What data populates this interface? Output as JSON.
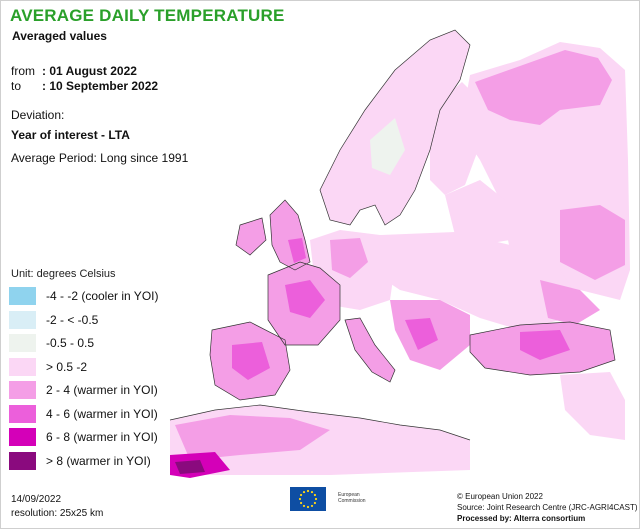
{
  "header": {
    "title": "AVERAGE DAILY TEMPERATURE",
    "subtitle": "Averaged values"
  },
  "period": {
    "from_label": "from",
    "from_value": ": 01 August 2022",
    "to_label": "to",
    "to_value": ": 10 September 2022"
  },
  "deviation": {
    "label": "Deviation:",
    "type": "Year of interest - LTA",
    "average_period": "Average Period: Long since 1991"
  },
  "legend": {
    "unit": "Unit: degrees Celsius",
    "items": [
      {
        "label": "-4 - -2 (cooler in YOI)",
        "color": "#8fd3ee"
      },
      {
        "label": "-2 - < -0.5",
        "color": "#d9eef6"
      },
      {
        "label": "-0.5 - 0.5",
        "color": "#eef3ee"
      },
      {
        "label": "> 0.5 -2",
        "color": "#fbd7f5"
      },
      {
        "label": "2 - 4 (warmer in YOI)",
        "color": "#f49ee6"
      },
      {
        "label": "4 - 6 (warmer in YOI)",
        "color": "#ec5fdb"
      },
      {
        "label": "6 - 8 (warmer in YOI)",
        "color": "#d400b8"
      },
      {
        "label": "> 8 (warmer in YOI)",
        "color": "#8a0a7e"
      }
    ]
  },
  "footer": {
    "date": "14/09/2022",
    "resolution": "resolution: 25x25 km",
    "copyright": "© European Union 2022",
    "source": "Source: Joint Research Centre (JRC-AGRI4CAST)",
    "processed": "Processed by: Alterra consortium",
    "eu_logo_line1": "European",
    "eu_logo_line2": "Commission"
  },
  "colors": {
    "title": "#2aa02a",
    "land_base": "#fbd7f5",
    "warm": "#f49ee6",
    "warmer": "#ec5fdb",
    "hot": "#d400b8",
    "neutral": "#eef3ee",
    "eu_blue": "#0e4ea3",
    "eu_gold": "#ffd617"
  }
}
